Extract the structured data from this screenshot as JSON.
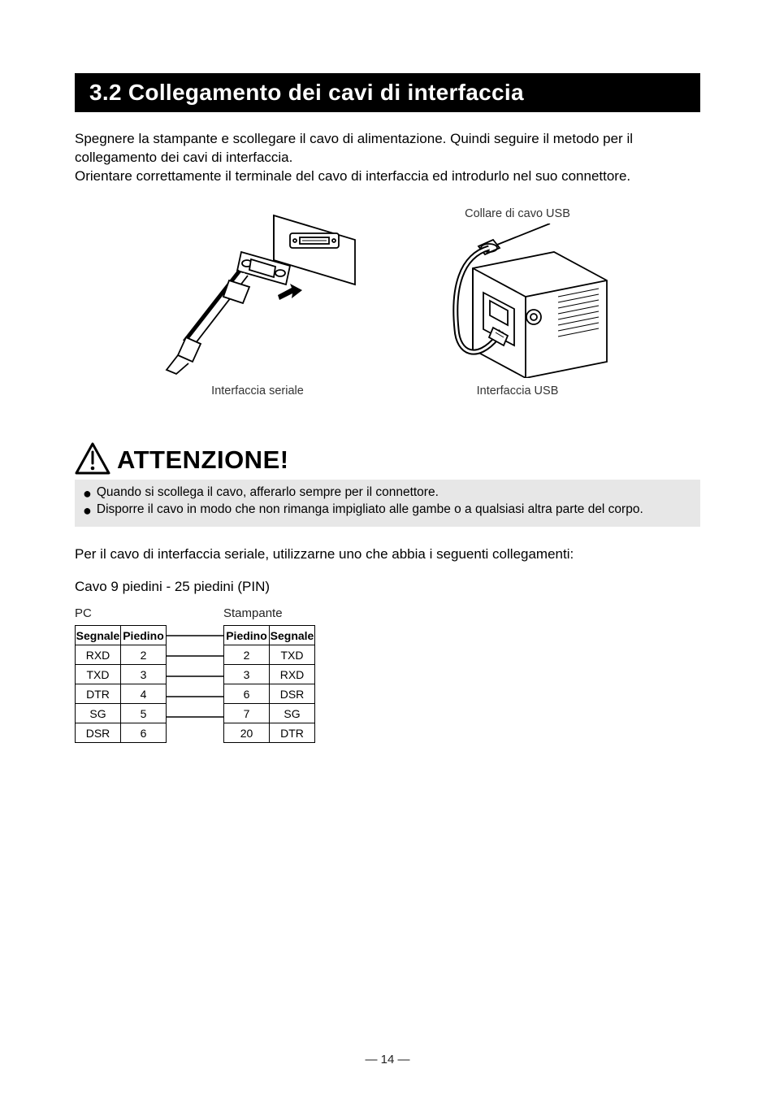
{
  "section_header": "3.2  Collegamento dei cavi di interfaccia",
  "intro": "Spegnere la stampante e scollegare il cavo di alimentazione.  Quindi seguire il metodo per il collegamento dei cavi di interfaccia.\nOrientare correttamente il terminale del cavo di interfaccia ed introdurlo nel suo connettore.",
  "fig_left_caption": "Interfaccia seriale",
  "fig_right_top": "Collare di cavo USB",
  "fig_right_caption": "Interfaccia USB",
  "caution_title": "ATTENZIONE!",
  "caution_items": [
    "Quando si scollega il cavo, afferarlo sempre per il connettore.",
    "Disporre il cavo in modo che non rimanga impigliato alle gambe o a qualsiasi altra parte del corpo."
  ],
  "post_intro": "Per il cavo di interfaccia seriale, utilizzarne uno che abbia i seguenti collegamenti:",
  "cable_spec": "Cavo 9 piedini - 25 piedini (PIN)",
  "label_pc": "PC",
  "label_printer": "Stampante",
  "table_headers": {
    "segnale": "Segnale",
    "piedino": "Piedino"
  },
  "pc_rows": [
    {
      "segnale": "RXD",
      "piedino": "2"
    },
    {
      "segnale": "TXD",
      "piedino": "3"
    },
    {
      "segnale": "DTR",
      "piedino": "4"
    },
    {
      "segnale": "SG",
      "piedino": "5"
    },
    {
      "segnale": "DSR",
      "piedino": "6"
    }
  ],
  "printer_rows": [
    {
      "piedino": "2",
      "segnale": "TXD"
    },
    {
      "piedino": "3",
      "segnale": "RXD"
    },
    {
      "piedino": "6",
      "segnale": "DSR"
    },
    {
      "piedino": "7",
      "segnale": "SG"
    },
    {
      "piedino": "20",
      "segnale": "DTR"
    }
  ],
  "page_number": "— 14 —",
  "colors": {
    "header_bg": "#000000",
    "header_fg": "#ffffff",
    "body_text": "#000000",
    "caution_bg": "#e7e7e7",
    "line": "#000000"
  }
}
